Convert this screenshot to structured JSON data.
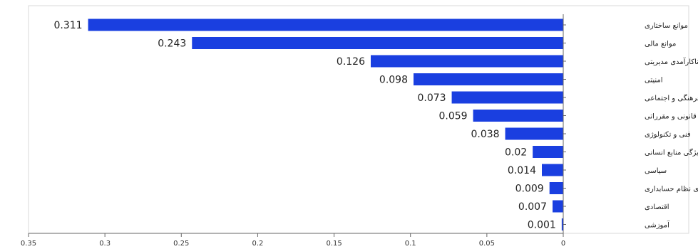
{
  "chart_data": {
    "type": "bar",
    "orientation": "horizontal",
    "x_axis_reversed": true,
    "categories": [
      "موانع ساختاری",
      "موانع مالی",
      "ناکارآمدی مدیریتی",
      "امنیتی",
      "فرهنگی و اجتماعی",
      "قانونی و مقرراتی",
      "فنی و تکنولوژی",
      "ویژگی منابع انسانی",
      "سیاسی",
      "ناکارآمدی نظام حسابداری",
      "اقتصادی",
      "آموزشی"
    ],
    "values": [
      0.311,
      0.243,
      0.126,
      0.098,
      0.073,
      0.059,
      0.038,
      0.02,
      0.014,
      0.009,
      0.007,
      0.001
    ],
    "value_labels": [
      "0.311",
      "0.243",
      "0.126",
      "0.098",
      "0.073",
      "0.059",
      "0.038",
      "0.02",
      "0.014",
      "0.009",
      "0.007",
      "0.001"
    ],
    "xlim": [
      0,
      0.35
    ],
    "x_ticks": [
      0.35,
      0.3,
      0.25,
      0.2,
      0.15,
      0.1,
      0.05,
      0
    ],
    "x_tick_labels": [
      "0.35",
      "0.3",
      "0.25",
      "0.2",
      "0.15",
      "0.1",
      "0.05",
      "0"
    ],
    "title": "",
    "xlabel": "",
    "ylabel": "",
    "grid": false,
    "legend": "none",
    "bar_color": "#1a3fe0"
  }
}
